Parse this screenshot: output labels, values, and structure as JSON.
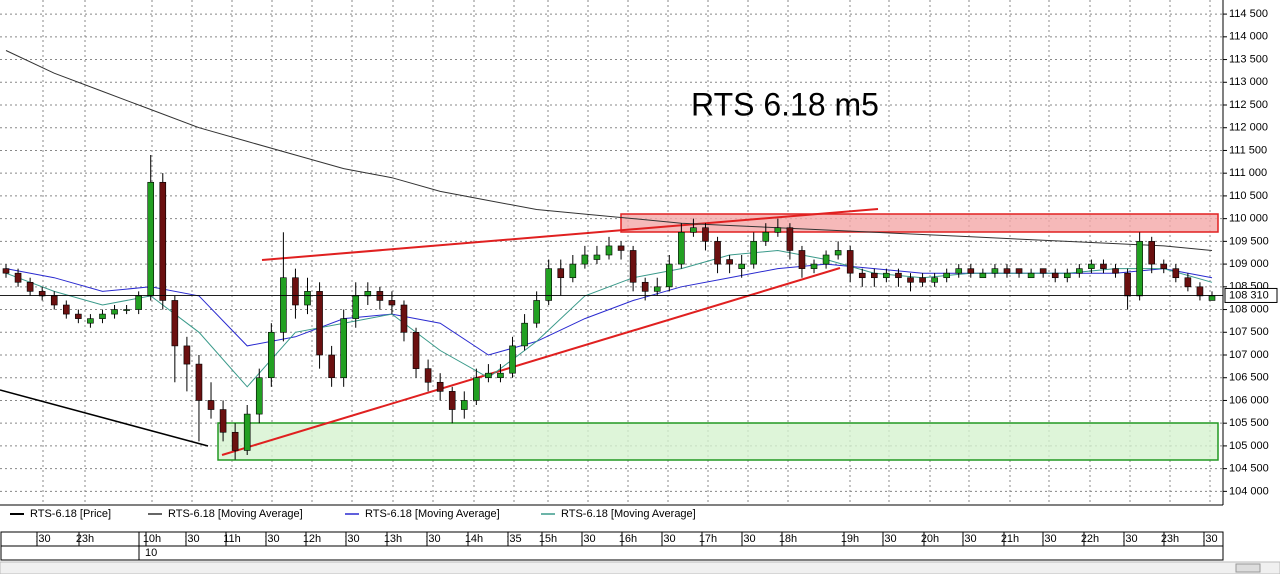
{
  "chart_data": {
    "type": "candlestick",
    "title": "RTS 6.18 m5",
    "name": "RTS-6.18 [Price]",
    "color": "#000000",
    "up_color": "#22a022",
    "down_color": "#6b1010",
    "ohlc": [
      [
        108900,
        109000,
        108700,
        108800
      ],
      [
        108800,
        108900,
        108500,
        108600
      ],
      [
        108600,
        108700,
        108300,
        108400
      ],
      [
        108400,
        108500,
        108200,
        108300
      ],
      [
        108300,
        108400,
        108000,
        108100
      ],
      [
        108100,
        108200,
        107800,
        107900
      ],
      [
        107900,
        108000,
        107700,
        107800
      ],
      [
        107700,
        107900,
        107600,
        107800
      ],
      [
        107800,
        108000,
        107700,
        107900
      ],
      [
        107900,
        108100,
        107800,
        108000
      ],
      [
        108000,
        108100,
        107900,
        108000
      ],
      [
        108000,
        108400,
        107900,
        108300
      ],
      [
        108300,
        111400,
        108200,
        110800
      ],
      [
        110800,
        111000,
        108000,
        108200
      ],
      [
        108200,
        108300,
        106400,
        107200
      ],
      [
        107200,
        107400,
        106200,
        106800
      ],
      [
        106800,
        107000,
        105100,
        106000
      ],
      [
        106000,
        106400,
        105600,
        105800
      ],
      [
        105800,
        106000,
        105100,
        105300
      ],
      [
        105300,
        105500,
        104700,
        104900
      ],
      [
        104900,
        105900,
        104800,
        105700
      ],
      [
        105700,
        106700,
        105500,
        106500
      ],
      [
        106500,
        107700,
        106300,
        107500
      ],
      [
        107500,
        109700,
        107300,
        108700
      ],
      [
        108700,
        108900,
        107800,
        108100
      ],
      [
        108100,
        108700,
        107900,
        108400
      ],
      [
        108400,
        108600,
        106700,
        107000
      ],
      [
        107000,
        107200,
        106300,
        106500
      ],
      [
        106500,
        108000,
        106300,
        107800
      ],
      [
        107800,
        108600,
        107600,
        108300
      ],
      [
        108300,
        108600,
        108100,
        108400
      ],
      [
        108400,
        108500,
        108000,
        108200
      ],
      [
        108200,
        108400,
        107900,
        108100
      ],
      [
        108100,
        108200,
        107300,
        107500
      ],
      [
        107500,
        107600,
        106500,
        106700
      ],
      [
        106700,
        106900,
        106200,
        106400
      ],
      [
        106400,
        106600,
        106000,
        106200
      ],
      [
        106200,
        106300,
        105500,
        105800
      ],
      [
        105800,
        106200,
        105600,
        106000
      ],
      [
        106000,
        106700,
        105900,
        106500
      ],
      [
        106500,
        106800,
        106400,
        106600
      ],
      [
        106500,
        106800,
        106400,
        106600
      ],
      [
        106600,
        107400,
        106500,
        107200
      ],
      [
        107200,
        107900,
        107100,
        107700
      ],
      [
        107700,
        108400,
        107600,
        108200
      ],
      [
        108200,
        109100,
        108100,
        108900
      ],
      [
        108900,
        109100,
        108300,
        108700
      ],
      [
        108700,
        109200,
        108600,
        109000
      ],
      [
        109000,
        109400,
        108900,
        109200
      ],
      [
        109100,
        109400,
        109000,
        109200
      ],
      [
        109200,
        109600,
        109100,
        109400
      ],
      [
        109400,
        109500,
        109100,
        109300
      ],
      [
        109300,
        109400,
        108400,
        108600
      ],
      [
        108600,
        108700,
        108200,
        108400
      ],
      [
        108400,
        108700,
        108300,
        108500
      ],
      [
        108500,
        109200,
        108400,
        109000
      ],
      [
        109000,
        109900,
        108900,
        109700
      ],
      [
        109700,
        110000,
        109600,
        109800
      ],
      [
        109800,
        109900,
        109300,
        109500
      ],
      [
        109500,
        109600,
        108800,
        109000
      ],
      [
        109100,
        109200,
        108800,
        109000
      ],
      [
        108900,
        109200,
        108700,
        109000
      ],
      [
        109000,
        109700,
        108900,
        109500
      ],
      [
        109500,
        109900,
        109400,
        109700
      ],
      [
        109700,
        110000,
        109600,
        109800
      ],
      [
        109800,
        109900,
        109100,
        109300
      ],
      [
        109300,
        109400,
        108700,
        108900
      ],
      [
        108900,
        109100,
        108800,
        109000
      ],
      [
        109000,
        109300,
        108900,
        109200
      ],
      [
        109200,
        109500,
        109100,
        109300
      ],
      [
        109300,
        109400,
        108600,
        108800
      ],
      [
        108800,
        108900,
        108500,
        108700
      ],
      [
        108800,
        108900,
        108500,
        108700
      ],
      [
        108700,
        108900,
        108600,
        108800
      ],
      [
        108800,
        108900,
        108500,
        108700
      ],
      [
        108700,
        108800,
        108400,
        108600
      ],
      [
        108700,
        108800,
        108500,
        108600
      ],
      [
        108600,
        108800,
        108500,
        108700
      ],
      [
        108700,
        108900,
        108600,
        108800
      ],
      [
        108800,
        109000,
        108700,
        108900
      ],
      [
        108900,
        109000,
        108700,
        108800
      ],
      [
        108700,
        108900,
        108700,
        108800
      ],
      [
        108800,
        109000,
        108700,
        108900
      ],
      [
        108900,
        109000,
        108700,
        108800
      ],
      [
        108900,
        108900,
        108700,
        108800
      ],
      [
        108700,
        108900,
        108700,
        108800
      ],
      [
        108900,
        108900,
        108700,
        108800
      ],
      [
        108800,
        108900,
        108600,
        108700
      ],
      [
        108700,
        108900,
        108600,
        108800
      ],
      [
        108800,
        109000,
        108700,
        108900
      ],
      [
        108900,
        109100,
        108800,
        109000
      ],
      [
        109000,
        109100,
        108800,
        108900
      ],
      [
        108900,
        109000,
        108700,
        108800
      ],
      [
        108800,
        108900,
        108000,
        108300
      ],
      [
        108300,
        109700,
        108200,
        109500
      ],
      [
        109500,
        109600,
        108800,
        109000
      ],
      [
        109000,
        109100,
        108800,
        108900
      ],
      [
        108900,
        109000,
        108600,
        108700
      ],
      [
        108700,
        108800,
        108400,
        108500
      ],
      [
        108500,
        108600,
        108200,
        108300
      ],
      [
        108200,
        108400,
        108200,
        108300
      ]
    ],
    "series": [
      {
        "name": "RTS-6.18 [Moving Average]",
        "color": "#333333",
        "values": [
          113700,
          113200,
          112800,
          112400,
          112000,
          111700,
          111400,
          111100,
          110900,
          110600,
          110400,
          110200,
          110100,
          110000,
          109900,
          109850,
          109800,
          109750,
          109700,
          109650,
          109600,
          109550,
          109500,
          109450,
          109400,
          109300
        ]
      },
      {
        "name": "RTS-6.18 [Moving Average]",
        "color": "#2a2ad0",
        "values": [
          108900,
          108700,
          108400,
          108500,
          108300,
          107200,
          107400,
          107800,
          107900,
          107700,
          107000,
          107300,
          107800,
          108200,
          108500,
          108700,
          108900,
          109000,
          108900,
          108800,
          108800,
          108800,
          108800,
          108800,
          108900,
          108700
        ]
      },
      {
        "name": "RTS-6.18 [Moving Average]",
        "color": "#3a9a8a",
        "values": [
          108800,
          108400,
          108100,
          108300,
          107500,
          106300,
          107500,
          107700,
          107900,
          107100,
          106500,
          107300,
          108300,
          108700,
          108900,
          109200,
          109300,
          109100,
          108800,
          108700,
          108800,
          108800,
          108800,
          108900,
          108900,
          108600
        ]
      }
    ],
    "last_price": {
      "value": 108310,
      "label": "108 310"
    },
    "ylim": [
      103700,
      114700
    ],
    "yticks": [
      {
        "value": 104000,
        "label": "104 000"
      },
      {
        "value": 104500,
        "label": "104 500"
      },
      {
        "value": 105000,
        "label": "105 000"
      },
      {
        "value": 105500,
        "label": "105 500"
      },
      {
        "value": 106000,
        "label": "106 000"
      },
      {
        "value": 106500,
        "label": "106 500"
      },
      {
        "value": 107000,
        "label": "107 000"
      },
      {
        "value": 107500,
        "label": "107 500"
      },
      {
        "value": 108000,
        "label": "108 000"
      },
      {
        "value": 108500,
        "label": "108 500"
      },
      {
        "value": 109000,
        "label": "109 000"
      },
      {
        "value": 109500,
        "label": "109 500"
      },
      {
        "value": 110000,
        "label": "110 000"
      },
      {
        "value": 110500,
        "label": "110 500"
      },
      {
        "value": 111000,
        "label": "111 000"
      },
      {
        "value": 111500,
        "label": "111 500"
      },
      {
        "value": 112000,
        "label": "112 000"
      },
      {
        "value": 112500,
        "label": "112 500"
      },
      {
        "value": 113000,
        "label": "113 000"
      },
      {
        "value": 113500,
        "label": "113 500"
      },
      {
        "value": 114000,
        "label": "114 000"
      },
      {
        "value": 114500,
        "label": "114 500"
      }
    ],
    "x_labels": [
      ":30",
      "23h",
      "10h",
      ":30",
      "11h",
      ":30",
      "12h",
      ":30",
      "13h",
      ":30",
      "14h",
      ":35",
      "15h",
      ":30",
      "16h",
      ":30",
      "17h",
      ":30",
      "18h",
      "19h",
      ":30",
      "20h",
      ":30",
      "21h",
      ":30",
      "22h",
      ":30",
      "23h",
      ":30"
    ],
    "date_label": "10",
    "grid": true
  }
}
